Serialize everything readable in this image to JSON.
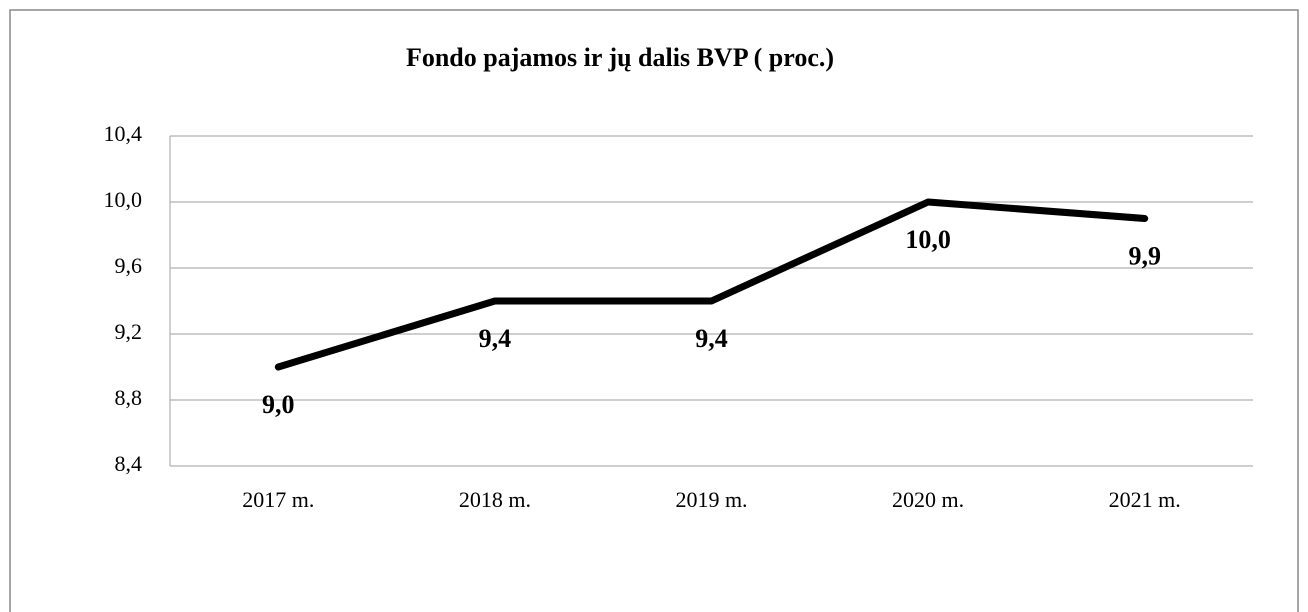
{
  "chart_data": {
    "type": "line",
    "title": "Fondo pajamos ir jų  dalis  BVP ( proc.)",
    "categories": [
      "2017 m.",
      "2018 m.",
      "2019 m.",
      "2020 m.",
      "2021 m."
    ],
    "series": [
      {
        "name": "Fondo pajamos",
        "color": "#000000",
        "values": [
          9.0,
          9.4,
          9.4,
          10.0,
          9.9
        ],
        "value_labels": [
          "9,0",
          "9,4",
          "9,4",
          "10,0",
          "9,9"
        ]
      }
    ],
    "ylim": [
      8.4,
      10.4
    ],
    "yticks": [
      {
        "value": 8.4,
        "label": "8,4"
      },
      {
        "value": 8.8,
        "label": "8,8"
      },
      {
        "value": 9.2,
        "label": "9,2"
      },
      {
        "value": 9.6,
        "label": "9,6"
      },
      {
        "value": 10.0,
        "label": "10,0"
      },
      {
        "value": 10.4,
        "label": "10,4"
      }
    ],
    "grid": true
  }
}
